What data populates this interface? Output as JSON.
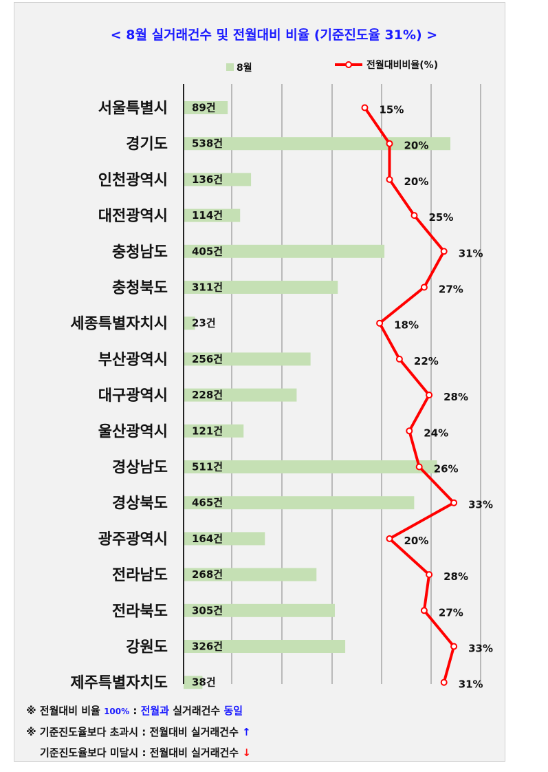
{
  "title": "< 8월 실거래건수 및 전월대비 비율 (기준진도율 31%) >",
  "legend": {
    "bar_label": "8월",
    "line_label": "전월대비비율(%)"
  },
  "colors": {
    "bar": "#c5e0b4",
    "line": "#ff0000",
    "title": "#1a1aff",
    "grid": "#808080"
  },
  "chart_data": {
    "type": "bar",
    "categories": [
      "서울특별시",
      "경기도",
      "인천광역시",
      "대전광역시",
      "충청남도",
      "충청북도",
      "세종특별자치시",
      "부산광역시",
      "대구광역시",
      "울산광역시",
      "경상남도",
      "경상북도",
      "광주광역시",
      "전라남도",
      "전라북도",
      "강원도",
      "제주특별자치도"
    ],
    "series": [
      {
        "name": "8월",
        "type": "bar",
        "values": [
          89,
          538,
          136,
          114,
          405,
          311,
          23,
          256,
          228,
          121,
          511,
          465,
          164,
          268,
          305,
          326,
          38
        ],
        "unit_suffix": "건",
        "xlim": [
          0,
          600
        ]
      },
      {
        "name": "전월대비비율(%)",
        "type": "line",
        "values": [
          15,
          20,
          20,
          25,
          31,
          27,
          18,
          22,
          28,
          24,
          26,
          33,
          20,
          28,
          27,
          33,
          31
        ],
        "unit_suffix": "%"
      }
    ],
    "orientation": "horizontal",
    "grid": true,
    "legend_position": "top"
  },
  "notes": {
    "line1_prefix": "※ 전월대비 비율 ",
    "line1_pct": "100%",
    "line1_colon": " : ",
    "line1_a": "전월과",
    "line1_b": " 실거래건수 ",
    "line1_c": "동일",
    "line2": "※ 기준진도율보다 초과시 : 전월대비 실거래건수 ",
    "line2_arrow": "↑",
    "line3": "기준진도율보다 미달시 : 전월대비 실거래건수 ",
    "line3_arrow": "↓"
  }
}
